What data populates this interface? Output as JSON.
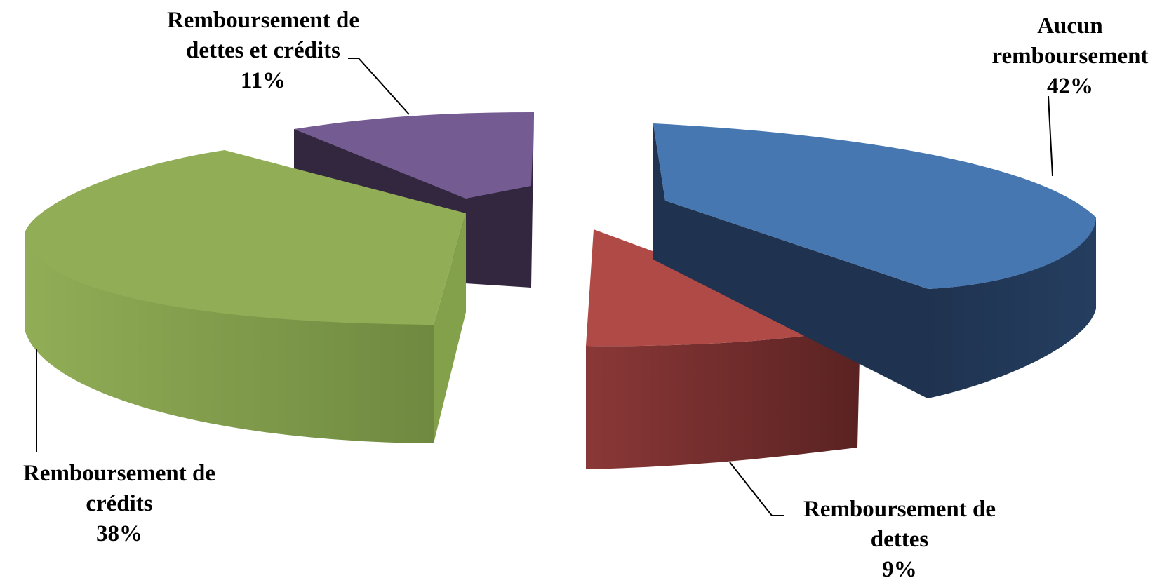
{
  "chart_data": {
    "type": "pie",
    "variant": "3d-exploded",
    "slices": [
      {
        "key": "aucun",
        "label_lines": [
          "Aucun",
          "remboursement"
        ],
        "percent_label": "42%",
        "value": 42,
        "color": "#4677b0"
      },
      {
        "key": "dettes",
        "label_lines": [
          "Remboursement de",
          "dettes"
        ],
        "percent_label": "9%",
        "value": 9,
        "color": "#b04a47"
      },
      {
        "key": "credits",
        "label_lines": [
          "Remboursement de",
          "crédits"
        ],
        "percent_label": "38%",
        "value": 38,
        "color": "#91ad56"
      },
      {
        "key": "dettes-credits",
        "label_lines": [
          "Remboursement de",
          "dettes et crédits"
        ],
        "percent_label": "11%",
        "value": 11,
        "color": "#745b92"
      }
    ]
  }
}
